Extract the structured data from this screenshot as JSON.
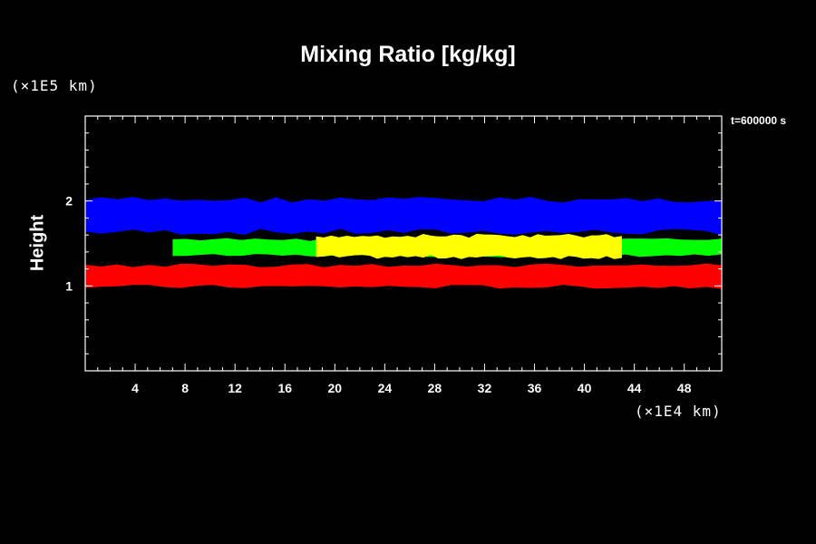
{
  "chart_data": {
    "type": "heatmap",
    "title": "Mixing Ratio [kg/kg]",
    "ylabel": "Height",
    "y_unit": "(×1E5 km)",
    "x_unit": "(×1E4 km)",
    "time_label": "t=600000 s",
    "xlim": [
      0,
      51
    ],
    "ylim": [
      0,
      3
    ],
    "x_ticks": [
      4,
      8,
      12,
      16,
      20,
      24,
      28,
      32,
      36,
      40,
      44,
      48
    ],
    "y_ticks": [
      1,
      2
    ],
    "grid": false,
    "layers": [
      {
        "color": "#0000ff",
        "x_range": [
          0,
          51
        ],
        "y_bottom": 1.62,
        "y_top": 2.03
      },
      {
        "color": "#00ff00",
        "x_range": [
          7,
          51
        ],
        "y_bottom": 1.35,
        "y_top": 1.55
      },
      {
        "color": "#ffff00",
        "x_range": [
          18.5,
          43
        ],
        "y_bottom": 1.33,
        "y_top": 1.6
      },
      {
        "color": "#ff0000",
        "x_range": [
          0,
          51
        ],
        "y_bottom": 0.98,
        "y_top": 1.25
      }
    ]
  }
}
